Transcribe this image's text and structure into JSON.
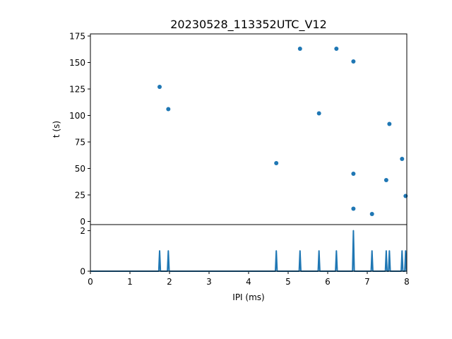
{
  "chart_data": [
    {
      "type": "scatter",
      "title": "20230528_113352UTC_V12",
      "xlabel": "",
      "ylabel": "t (s)",
      "xlim": [
        0,
        8
      ],
      "ylim": [
        177,
        -3
      ],
      "y_inverted": true,
      "yticks": [
        0,
        25,
        50,
        75,
        100,
        125,
        150,
        175
      ],
      "color": "#1f77b4",
      "points": [
        {
          "x": 1.75,
          "y": 127
        },
        {
          "x": 1.97,
          "y": 106
        },
        {
          "x": 4.7,
          "y": 55
        },
        {
          "x": 5.3,
          "y": 163
        },
        {
          "x": 5.78,
          "y": 102
        },
        {
          "x": 6.22,
          "y": 163
        },
        {
          "x": 6.65,
          "y": 12
        },
        {
          "x": 6.65,
          "y": 45
        },
        {
          "x": 6.65,
          "y": 151
        },
        {
          "x": 7.12,
          "y": 7
        },
        {
          "x": 7.48,
          "y": 39
        },
        {
          "x": 7.56,
          "y": 92
        },
        {
          "x": 7.88,
          "y": 59
        },
        {
          "x": 7.97,
          "y": 24
        }
      ]
    },
    {
      "type": "line",
      "title": "",
      "xlabel": "IPI (ms)",
      "ylabel": "",
      "xlim": [
        0,
        8
      ],
      "ylim": [
        0,
        2.3
      ],
      "xticks": [
        0,
        1,
        2,
        3,
        4,
        5,
        6,
        7,
        8
      ],
      "yticks": [
        0,
        2
      ],
      "color": "#1f77b4",
      "spikes": [
        {
          "x": 1.75,
          "y": 1
        },
        {
          "x": 1.97,
          "y": 1
        },
        {
          "x": 4.7,
          "y": 1
        },
        {
          "x": 5.3,
          "y": 1
        },
        {
          "x": 5.78,
          "y": 1
        },
        {
          "x": 6.22,
          "y": 1
        },
        {
          "x": 6.65,
          "y": 2
        },
        {
          "x": 7.12,
          "y": 1
        },
        {
          "x": 7.48,
          "y": 1
        },
        {
          "x": 7.56,
          "y": 1
        },
        {
          "x": 7.88,
          "y": 1
        },
        {
          "x": 7.97,
          "y": 1
        }
      ]
    }
  ]
}
